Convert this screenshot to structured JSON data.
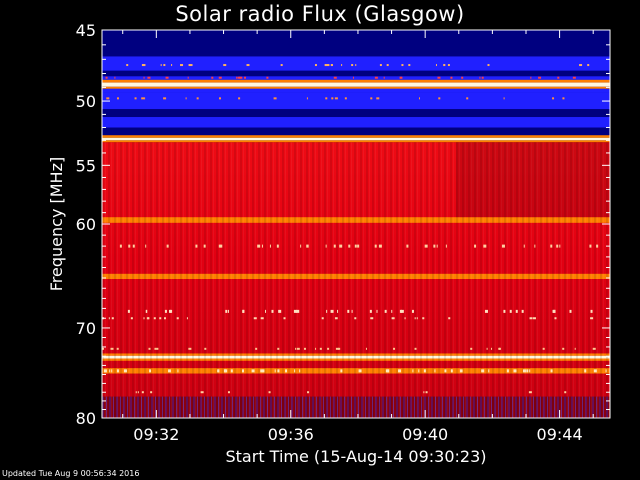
{
  "chart_data": {
    "type": "heatmap",
    "title": "Solar radio Flux (Glasgow)",
    "ylabel": "Frequency [MHz]",
    "xlabel": "Start Time (15-Aug-14 09:30:23)",
    "updated_text": "Updated Tue Aug  9 00:56:34 2016",
    "y_scale": "log",
    "ylim": [
      45,
      80
    ],
    "xlim": [
      "09:30:23",
      "09:45:30"
    ],
    "y_ticks": [
      45,
      50,
      55,
      60,
      70,
      80
    ],
    "y_tick_labels": [
      "45",
      "50",
      "55",
      "60",
      "70",
      "80"
    ],
    "x_ticks": [
      "09:32",
      "09:36",
      "09:40",
      "09:44"
    ],
    "grid": false,
    "colors": {
      "deep_blue": "#000080",
      "blue": "#2020ff",
      "dark_red": "#8a0010",
      "red": "#e00010",
      "orange": "#ff8000",
      "white": "#fff8e0"
    },
    "bands": [
      {
        "from": 45.0,
        "to": 46.8,
        "color": "deep_blue"
      },
      {
        "from": 46.8,
        "to": 47.8,
        "color": "blue"
      },
      {
        "from": 47.8,
        "to": 48.2,
        "color": "deep_blue"
      },
      {
        "from": 48.2,
        "to": 48.45,
        "color": "blue"
      },
      {
        "from": 48.45,
        "to": 48.65,
        "color": "orange"
      },
      {
        "from": 48.65,
        "to": 48.95,
        "color": "white"
      },
      {
        "from": 48.95,
        "to": 49.1,
        "color": "orange"
      },
      {
        "from": 49.1,
        "to": 49.4,
        "color": "blue"
      },
      {
        "from": 49.4,
        "to": 50.6,
        "color": "blue"
      },
      {
        "from": 50.6,
        "to": 51.2,
        "color": "deep_blue"
      },
      {
        "from": 51.2,
        "to": 52.0,
        "color": "blue"
      },
      {
        "from": 52.0,
        "to": 52.6,
        "color": "deep_blue"
      },
      {
        "from": 52.6,
        "to": 52.8,
        "color": "orange"
      },
      {
        "from": 52.8,
        "to": 53.0,
        "color": "white"
      },
      {
        "from": 53.0,
        "to": 53.15,
        "color": "orange"
      },
      {
        "from": 53.15,
        "to": 59.4,
        "color": "red"
      },
      {
        "from": 59.4,
        "to": 59.9,
        "color": "orange"
      },
      {
        "from": 59.9,
        "to": 64.6,
        "color": "red"
      },
      {
        "from": 64.6,
        "to": 65.1,
        "color": "orange"
      },
      {
        "from": 65.1,
        "to": 72.7,
        "color": "red"
      },
      {
        "from": 72.7,
        "to": 72.95,
        "color": "orange"
      },
      {
        "from": 72.95,
        "to": 73.25,
        "color": "white"
      },
      {
        "from": 73.25,
        "to": 73.5,
        "color": "orange"
      },
      {
        "from": 73.5,
        "to": 74.3,
        "color": "red"
      },
      {
        "from": 74.3,
        "to": 74.9,
        "color": "orange"
      },
      {
        "from": 74.9,
        "to": 77.5,
        "color": "red"
      },
      {
        "from": 77.5,
        "to": 80.0,
        "color": "dark_red"
      }
    ]
  }
}
